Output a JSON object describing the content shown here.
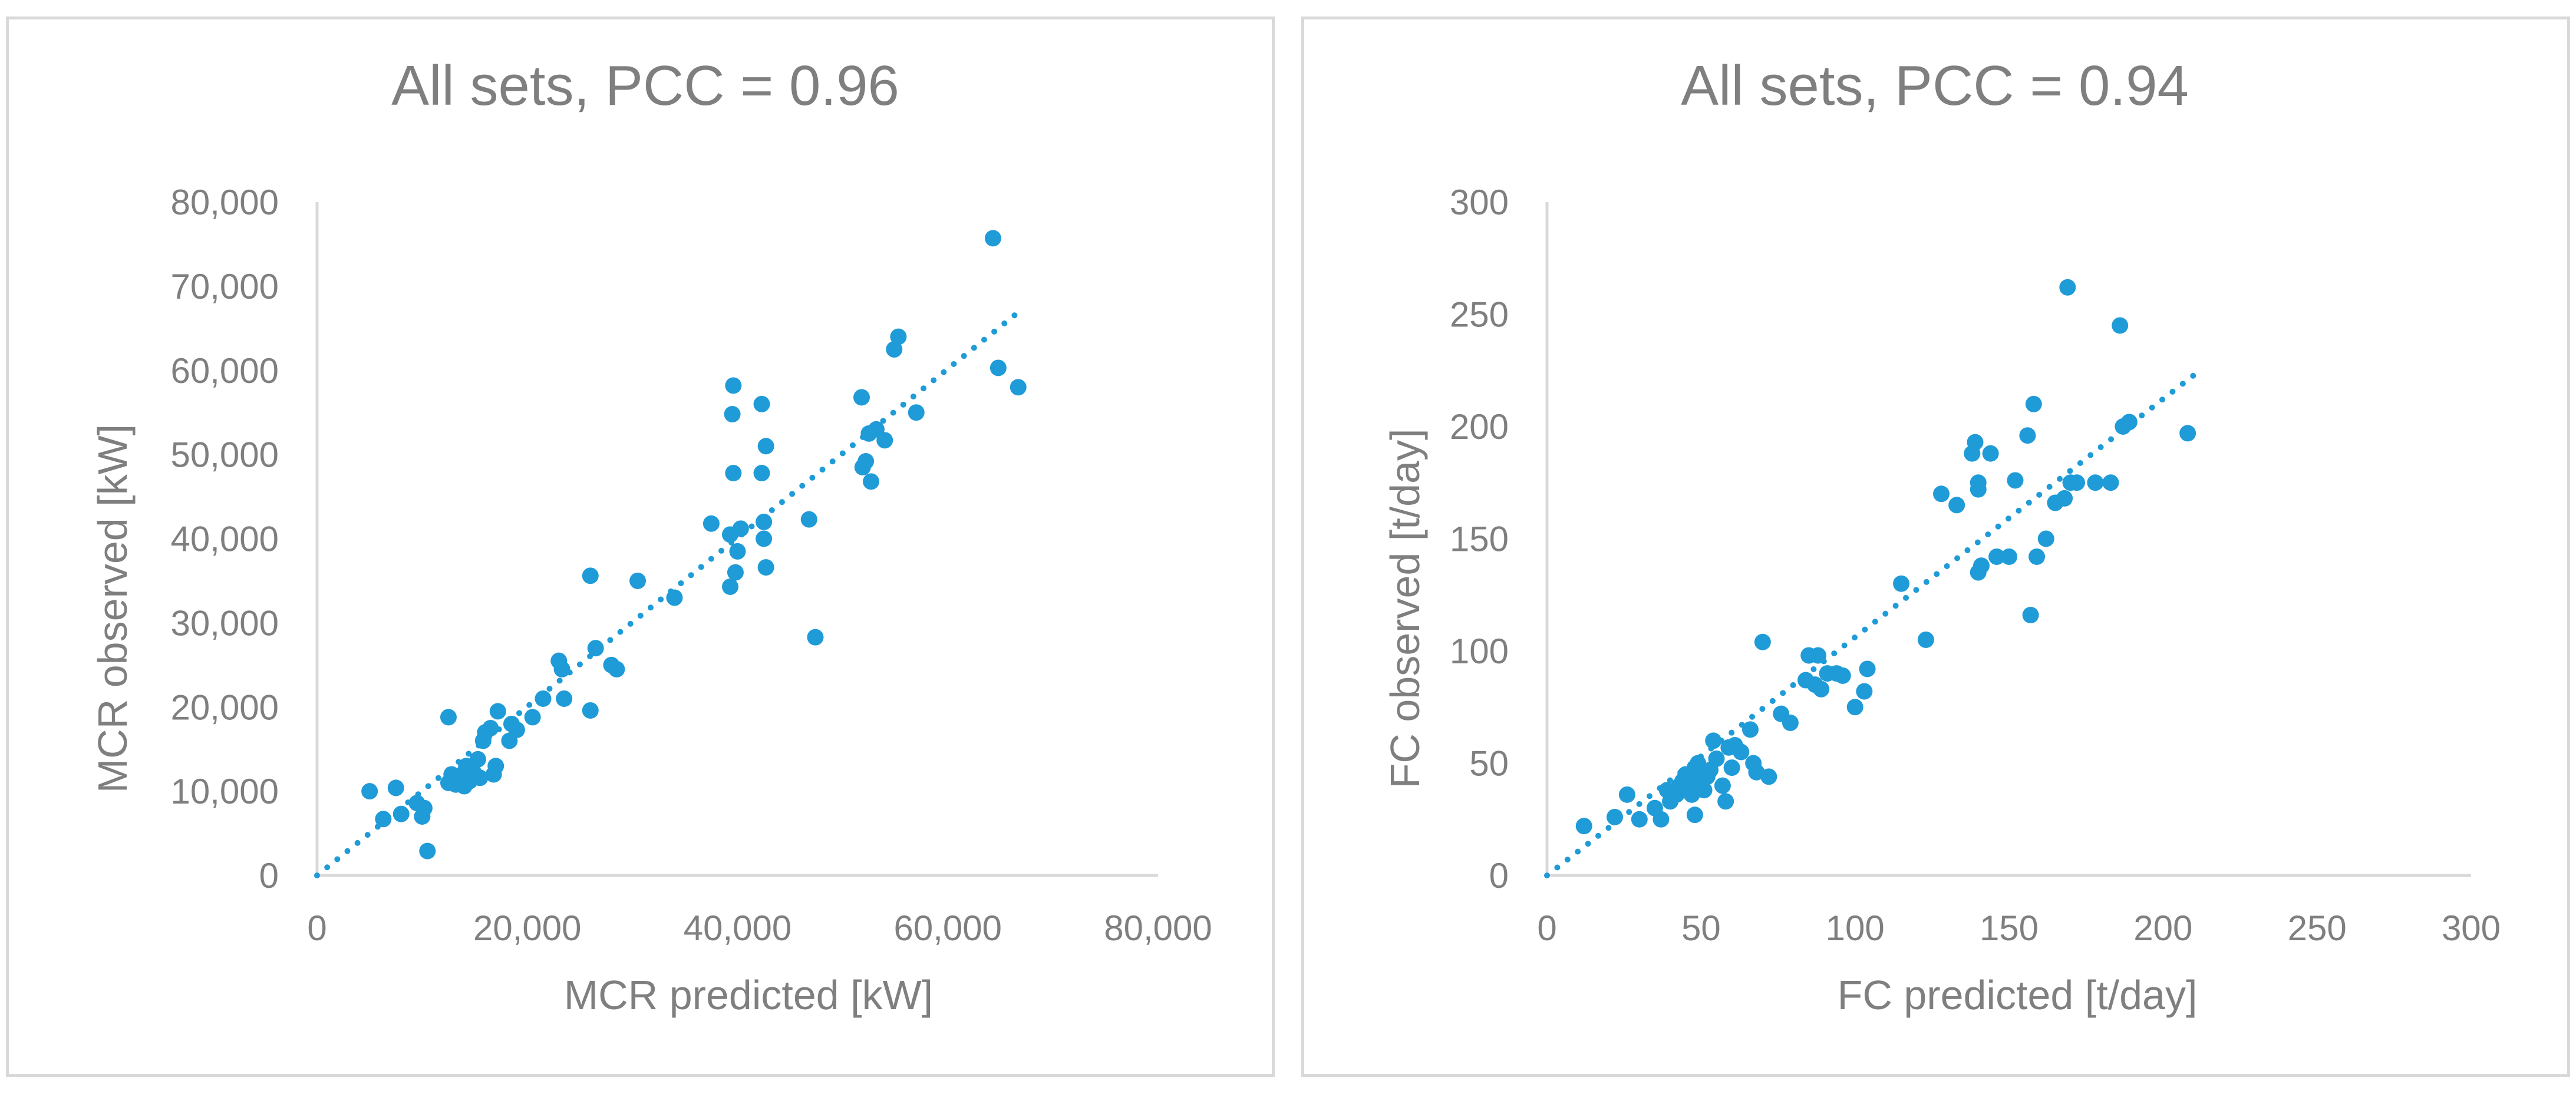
{
  "chart_data": [
    {
      "type": "scatter",
      "title": "All sets, PCC = 0.96",
      "xlabel": "MCR predicted [kW]",
      "ylabel": "MCR observed [kW]",
      "xlim": [
        0,
        80000
      ],
      "ylim": [
        0,
        80000
      ],
      "x_ticks": [
        "0",
        "20,000",
        "40,000",
        "60,000",
        "80,000"
      ],
      "y_ticks": [
        "0",
        "10,000",
        "20,000",
        "30,000",
        "40,000",
        "50,000",
        "60,000",
        "70,000",
        "80,000"
      ],
      "grid": false,
      "marker_color": "#1f9bd7",
      "trendline": {
        "style": "dotted",
        "from": [
          0,
          0
        ],
        "to": [
          66800,
          67000
        ]
      },
      "points": [
        [
          5000,
          10000
        ],
        [
          6300,
          6700
        ],
        [
          7500,
          10400
        ],
        [
          8000,
          7300
        ],
        [
          9500,
          8600
        ],
        [
          10000,
          7000
        ],
        [
          10200,
          8000
        ],
        [
          10500,
          2900
        ],
        [
          12500,
          18800
        ],
        [
          12500,
          11000
        ],
        [
          12800,
          12000
        ],
        [
          13200,
          10800
        ],
        [
          13500,
          11400
        ],
        [
          13800,
          12000
        ],
        [
          14000,
          10600
        ],
        [
          14200,
          13000
        ],
        [
          14500,
          11200
        ],
        [
          14800,
          12500
        ],
        [
          15000,
          12000
        ],
        [
          15300,
          13800
        ],
        [
          15500,
          11600
        ],
        [
          15800,
          16000
        ],
        [
          16000,
          17000
        ],
        [
          16500,
          17500
        ],
        [
          16800,
          12000
        ],
        [
          17000,
          13000
        ],
        [
          17200,
          19500
        ],
        [
          18300,
          16000
        ],
        [
          18500,
          18000
        ],
        [
          19000,
          17300
        ],
        [
          20500,
          18800
        ],
        [
          21500,
          21000
        ],
        [
          23000,
          25500
        ],
        [
          23300,
          24500
        ],
        [
          23500,
          21000
        ],
        [
          26000,
          35600
        ],
        [
          26000,
          19600
        ],
        [
          26500,
          27000
        ],
        [
          28000,
          25000
        ],
        [
          28500,
          24500
        ],
        [
          30500,
          35000
        ],
        [
          34000,
          33000
        ],
        [
          37500,
          41800
        ],
        [
          39300,
          40500
        ],
        [
          39300,
          34300
        ],
        [
          39500,
          54800
        ],
        [
          39600,
          58200
        ],
        [
          39600,
          47800
        ],
        [
          39800,
          36000
        ],
        [
          40000,
          38500
        ],
        [
          40300,
          41200
        ],
        [
          42300,
          56000
        ],
        [
          42300,
          47800
        ],
        [
          42500,
          42000
        ],
        [
          42500,
          40000
        ],
        [
          42700,
          51000
        ],
        [
          42700,
          36600
        ],
        [
          46800,
          42300
        ],
        [
          47400,
          28300
        ],
        [
          51800,
          56800
        ],
        [
          51900,
          48500
        ],
        [
          52200,
          49200
        ],
        [
          52500,
          52500
        ],
        [
          52700,
          46800
        ],
        [
          53200,
          53000
        ],
        [
          54000,
          51700
        ],
        [
          54900,
          62500
        ],
        [
          55300,
          64000
        ],
        [
          57000,
          55000
        ],
        [
          64300,
          75700
        ],
        [
          64800,
          60300
        ],
        [
          66700,
          58000
        ]
      ]
    },
    {
      "type": "scatter",
      "title": "All sets, PCC = 0.94",
      "xlabel": "FC predicted [t/day]",
      "ylabel": "FC observed [t/day]",
      "xlim": [
        0,
        300
      ],
      "ylim": [
        0,
        300
      ],
      "x_ticks": [
        "0",
        "50",
        "100",
        "150",
        "200",
        "250",
        "300"
      ],
      "y_ticks": [
        "0",
        "50",
        "100",
        "150",
        "200",
        "250",
        "300"
      ],
      "grid": false,
      "marker_color": "#1f9bd7",
      "trendline": {
        "style": "dotted",
        "from": [
          0,
          0
        ],
        "to": [
          212,
          225
        ]
      },
      "points": [
        [
          12,
          22
        ],
        [
          22,
          26
        ],
        [
          26,
          36
        ],
        [
          30,
          25
        ],
        [
          35,
          30
        ],
        [
          37,
          25
        ],
        [
          39,
          38
        ],
        [
          40,
          33
        ],
        [
          42,
          36
        ],
        [
          43,
          40
        ],
        [
          44,
          42
        ],
        [
          45,
          45
        ],
        [
          46,
          43
        ],
        [
          47,
          40
        ],
        [
          47,
          36
        ],
        [
          48,
          48
        ],
        [
          48,
          27
        ],
        [
          49,
          50
        ],
        [
          49,
          45
        ],
        [
          50,
          41
        ],
        [
          51,
          38
        ],
        [
          52,
          44
        ],
        [
          53,
          47
        ],
        [
          54,
          60
        ],
        [
          55,
          52
        ],
        [
          57,
          40
        ],
        [
          58,
          33
        ],
        [
          59,
          57
        ],
        [
          60,
          48
        ],
        [
          61,
          58
        ],
        [
          63,
          55
        ],
        [
          66,
          65
        ],
        [
          67,
          50
        ],
        [
          68,
          46
        ],
        [
          70,
          104
        ],
        [
          72,
          44
        ],
        [
          76,
          72
        ],
        [
          79,
          68
        ],
        [
          84,
          87
        ],
        [
          85,
          98
        ],
        [
          87,
          85
        ],
        [
          88,
          98
        ],
        [
          89,
          83
        ],
        [
          91,
          90
        ],
        [
          94,
          90
        ],
        [
          96,
          89
        ],
        [
          100,
          75
        ],
        [
          103,
          82
        ],
        [
          104,
          92
        ],
        [
          115,
          130
        ],
        [
          123,
          105
        ],
        [
          128,
          170
        ],
        [
          133,
          165
        ],
        [
          138,
          188
        ],
        [
          139,
          193
        ],
        [
          140,
          172
        ],
        [
          140,
          175
        ],
        [
          140,
          135
        ],
        [
          141,
          138
        ],
        [
          144,
          188
        ],
        [
          146,
          142
        ],
        [
          150,
          142
        ],
        [
          152,
          176
        ],
        [
          156,
          196
        ],
        [
          157,
          116
        ],
        [
          158,
          210
        ],
        [
          159,
          142
        ],
        [
          162,
          150
        ],
        [
          165,
          166
        ],
        [
          168,
          168
        ],
        [
          169,
          262
        ],
        [
          170,
          175
        ],
        [
          172,
          175
        ],
        [
          178,
          175
        ],
        [
          183,
          175
        ],
        [
          186,
          245
        ],
        [
          187,
          200
        ],
        [
          189,
          202
        ],
        [
          208,
          197
        ]
      ]
    }
  ]
}
